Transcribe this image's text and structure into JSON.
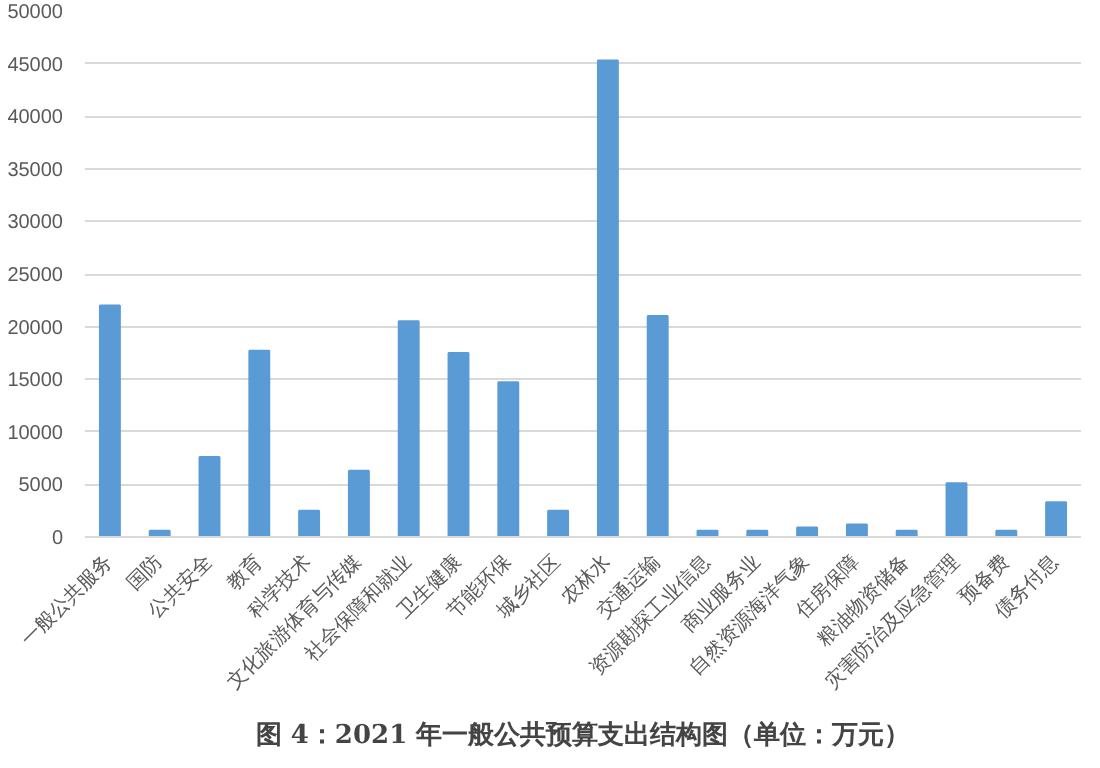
{
  "chart_data": {
    "type": "bar",
    "categories": [
      "一般公共服务",
      "国防",
      "公共安全",
      "教育",
      "科学技术",
      "文化旅游体育与传媒",
      "社会保障和就业",
      "卫生健康",
      "节能环保",
      "城乡社区",
      "农林水",
      "交通运输",
      "资源勘探工业信息",
      "商业服务业",
      "自然资源海洋气象",
      "住房保障",
      "粮油物资储备",
      "灾害防治及应急管理",
      "预备费",
      "债务付息"
    ],
    "values": [
      22000,
      600,
      7600,
      17700,
      2500,
      6300,
      20500,
      17500,
      14700,
      2500,
      45300,
      21000,
      600,
      600,
      900,
      1200,
      600,
      5100,
      600,
      3300
    ],
    "color": "#5b9bd5",
    "ylim": [
      0,
      50000
    ],
    "yticks": [
      0,
      5000,
      10000,
      15000,
      20000,
      25000,
      30000,
      35000,
      40000,
      45000,
      50000
    ],
    "grid": "y",
    "annotations": [
      "图 4：2021 年一般公共预算支出结构图（单位：万元）"
    ]
  }
}
